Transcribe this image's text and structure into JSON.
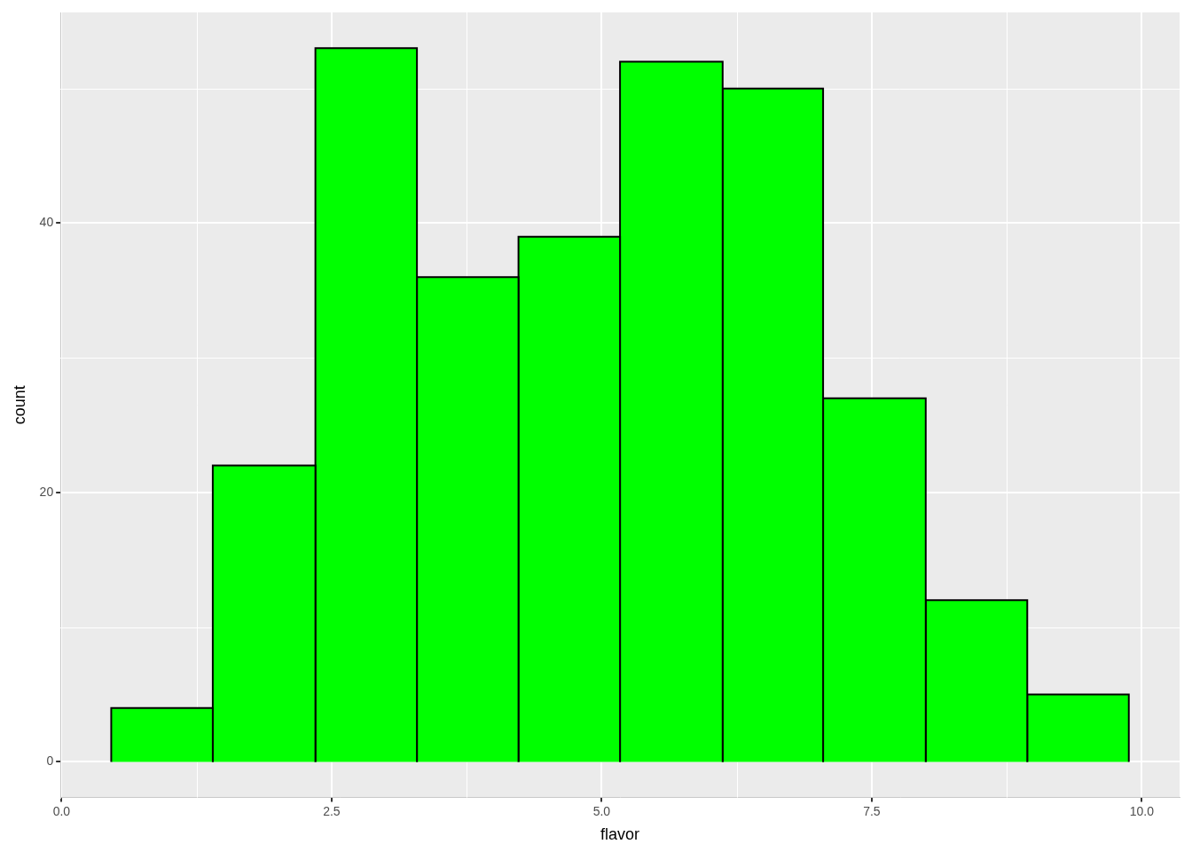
{
  "chart_data": {
    "type": "histogram",
    "x_label": "flavor",
    "y_label": "count",
    "bins": [
      0.46,
      1.4,
      2.35,
      3.29,
      4.23,
      5.17,
      6.12,
      7.05,
      8.0,
      8.94,
      9.88
    ],
    "values": [
      4,
      22,
      53,
      36,
      39,
      52,
      50,
      27,
      12,
      5
    ],
    "color": "#00FF00",
    "xlim": [
      -0.01,
      10.35
    ],
    "ylim": [
      -2.65,
      55.65
    ],
    "xticks": [
      {
        "value": 0,
        "label": "0.0"
      },
      {
        "value": 2.5,
        "label": "2.5"
      },
      {
        "value": 5,
        "label": "5.0"
      },
      {
        "value": 7.5,
        "label": "7.5"
      },
      {
        "value": 10,
        "label": "10.0"
      }
    ],
    "yticks": [
      0,
      20,
      40
    ],
    "grid": true
  }
}
